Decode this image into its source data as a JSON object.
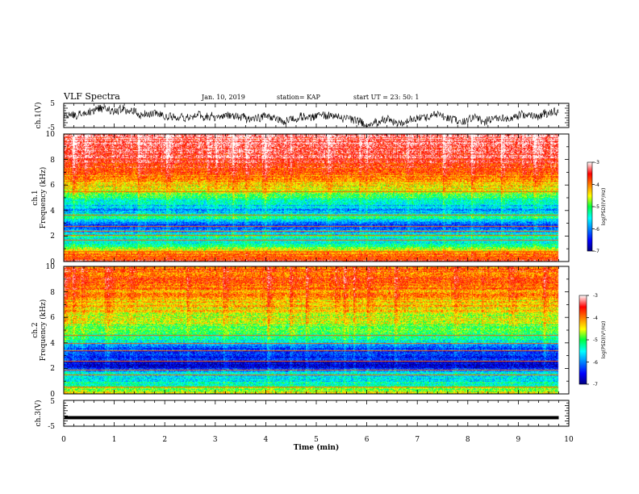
{
  "header": {
    "title": "VLF Spectra",
    "date": "Jan. 10, 2019",
    "station": "station= KAP",
    "start": "start  UT =   23: 50: 1"
  },
  "chart_data": [
    {
      "type": "line",
      "panel": "ch1-waveform",
      "ylabel": "ch.1(V)",
      "ylim": [
        -5,
        5
      ],
      "y_ticks": [
        "5",
        "-5"
      ],
      "x_range": [
        0,
        10
      ],
      "trace_color": "#000000",
      "trace_end": 9.8
    },
    {
      "type": "heatmap",
      "panel": "ch1-spectrogram",
      "ylabel": "ch.1\nFrequency  (kHz)",
      "ylim": [
        0,
        10
      ],
      "y_ticks": [
        "0",
        "2",
        "4",
        "6",
        "8",
        "10"
      ],
      "x_range": [
        0,
        10
      ],
      "data_end": 9.8,
      "colorbar": {
        "label": "log(PSD)(V²/Hz)",
        "range": [
          -7,
          -3
        ],
        "ticks": [
          "-3",
          "-4",
          "-5",
          "-6",
          "-7"
        ]
      },
      "profile": [
        [
          0.0,
          -3.6
        ],
        [
          0.3,
          -4.0
        ],
        [
          0.6,
          -3.8
        ],
        [
          1.0,
          -4.6
        ],
        [
          1.5,
          -5.6
        ],
        [
          2.0,
          -5.3
        ],
        [
          2.5,
          -5.9
        ],
        [
          3.0,
          -6.3
        ],
        [
          3.5,
          -5.2
        ],
        [
          4.0,
          -5.9
        ],
        [
          4.5,
          -5.6
        ],
        [
          5.0,
          -5.2
        ],
        [
          5.5,
          -4.9
        ],
        [
          6.0,
          -4.3
        ],
        [
          7.0,
          -3.9
        ],
        [
          8.0,
          -3.5
        ],
        [
          9.0,
          -3.35
        ],
        [
          10.0,
          -3.3
        ]
      ],
      "lines_khz": [
        0.2,
        0.4,
        0.8,
        1.7,
        2.1,
        2.4,
        2.8,
        3.7,
        5.5
      ]
    },
    {
      "type": "heatmap",
      "panel": "ch2-spectrogram",
      "ylabel": "ch.2\nFrequency  (kHz)",
      "ylim": [
        0,
        10
      ],
      "y_ticks": [
        "0",
        "2",
        "4",
        "6",
        "8",
        "10"
      ],
      "x_range": [
        0,
        10
      ],
      "data_end": 9.8,
      "colorbar": {
        "label": "log(PSD)(V²/Hz)",
        "range": [
          -7,
          -3
        ],
        "ticks": [
          "-3",
          "-4",
          "-5",
          "-6",
          "-7"
        ]
      },
      "profile": [
        [
          0.0,
          -4.4
        ],
        [
          0.4,
          -4.8
        ],
        [
          0.8,
          -5.3
        ],
        [
          1.2,
          -5.7
        ],
        [
          1.6,
          -5.5
        ],
        [
          2.0,
          -6.5
        ],
        [
          2.5,
          -6.7
        ],
        [
          3.0,
          -6.3
        ],
        [
          3.5,
          -6.4
        ],
        [
          4.0,
          -5.6
        ],
        [
          4.5,
          -5.2
        ],
        [
          5.0,
          -4.9
        ],
        [
          6.0,
          -4.6
        ],
        [
          7.0,
          -4.4
        ],
        [
          8.0,
          -4.1
        ],
        [
          9.0,
          -3.9
        ],
        [
          10.0,
          -3.9
        ]
      ],
      "lines_khz": [
        0.6,
        1.5,
        1.9,
        2.6,
        3.4,
        4.0,
        4.6
      ]
    },
    {
      "type": "line",
      "panel": "ch3-waveform",
      "ylabel": "ch.3(V)",
      "ylim": [
        -5,
        5
      ],
      "y_ticks": [
        "5",
        "-5"
      ],
      "x_range": [
        0,
        10
      ],
      "xlabel": "Time  (min)",
      "x_ticks": [
        "0",
        "1",
        "2",
        "3",
        "4",
        "5",
        "6",
        "7",
        "8",
        "9",
        "10"
      ],
      "constant_value": -1.7,
      "trace_color": "#000000",
      "trace_end": 9.8
    }
  ]
}
